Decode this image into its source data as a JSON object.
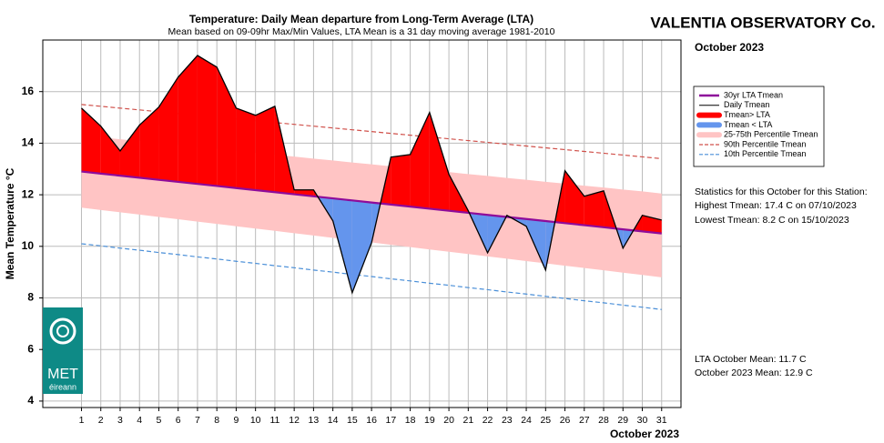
{
  "chart_data": {
    "type": "line",
    "title": "Temperature: Daily Mean departure from Long-Term Average (LTA)",
    "subtitle": "Mean based on 09-09hr Max/Min Values, LTA Mean is a 31 day moving average 1981-2010",
    "station": "VALENTIA OBSERVATORY Co.",
    "period": "October 2023",
    "x_label": "October 2023",
    "y_label": "Mean Temperature °C",
    "x": [
      1,
      2,
      3,
      4,
      5,
      6,
      7,
      8,
      9,
      10,
      11,
      12,
      13,
      14,
      15,
      16,
      17,
      18,
      19,
      20,
      21,
      22,
      23,
      24,
      25,
      26,
      27,
      28,
      29,
      30,
      31
    ],
    "xlim": [
      -1,
      32
    ],
    "xticks": [
      1,
      2,
      3,
      4,
      5,
      6,
      7,
      8,
      9,
      10,
      11,
      12,
      13,
      14,
      15,
      16,
      17,
      18,
      19,
      20,
      21,
      22,
      23,
      24,
      25,
      26,
      27,
      28,
      29,
      30,
      31
    ],
    "ylim": [
      3.75,
      18
    ],
    "yticks": [
      4,
      6,
      8,
      10,
      12,
      14,
      16
    ],
    "grid": true,
    "series": [
      {
        "name": "30yr LTA Tmean",
        "color": "#8e0b9a",
        "values": [
          12.9,
          12.82,
          12.74,
          12.66,
          12.58,
          12.5,
          12.42,
          12.34,
          12.26,
          12.18,
          12.1,
          12.02,
          11.94,
          11.86,
          11.78,
          11.7,
          11.62,
          11.54,
          11.46,
          11.38,
          11.3,
          11.22,
          11.14,
          11.06,
          10.98,
          10.9,
          10.82,
          10.74,
          10.66,
          10.58,
          10.5
        ]
      },
      {
        "name": "Daily Tmean",
        "color": "#000000",
        "values": [
          15.36,
          14.66,
          13.7,
          14.7,
          15.4,
          16.56,
          17.4,
          16.95,
          15.36,
          15.08,
          15.43,
          12.19,
          12.19,
          10.99,
          8.2,
          10.14,
          13.46,
          13.56,
          15.19,
          12.79,
          11.38,
          9.75,
          11.2,
          10.78,
          9.08,
          12.93,
          11.94,
          12.15,
          9.93,
          11.2,
          11.02
        ]
      },
      {
        "name": "90th Percentile Tmean",
        "color": "#d0504a",
        "dashed": true,
        "values": [
          15.5,
          15.43,
          15.36,
          15.29,
          15.22,
          15.15,
          15.08,
          15.01,
          14.94,
          14.87,
          14.8,
          14.73,
          14.66,
          14.59,
          14.52,
          14.45,
          14.38,
          14.31,
          14.24,
          14.17,
          14.1,
          14.03,
          13.96,
          13.89,
          13.82,
          13.75,
          13.68,
          13.61,
          13.54,
          13.47,
          13.4
        ]
      },
      {
        "name": "10th Percentile Tmean",
        "color": "#4a8fd8",
        "dashed": true,
        "values": [
          10.1,
          10.02,
          9.93,
          9.85,
          9.76,
          9.68,
          9.59,
          9.51,
          9.42,
          9.34,
          9.25,
          9.17,
          9.08,
          9.0,
          8.91,
          8.83,
          8.74,
          8.66,
          8.57,
          8.49,
          8.4,
          8.32,
          8.23,
          8.15,
          8.06,
          7.98,
          7.89,
          7.81,
          7.72,
          7.64,
          7.55
        ]
      }
    ],
    "band": {
      "name": "25-75th Percentile Tmean",
      "color": "#ffc4c4",
      "upper": [
        14.3,
        14.23,
        14.15,
        14.08,
        14.0,
        13.93,
        13.85,
        13.78,
        13.7,
        13.63,
        13.55,
        13.48,
        13.4,
        13.33,
        13.25,
        13.18,
        13.1,
        13.03,
        12.95,
        12.88,
        12.8,
        12.73,
        12.65,
        12.58,
        12.5,
        12.43,
        12.35,
        12.28,
        12.2,
        12.13,
        12.05
      ],
      "lower": [
        11.5,
        11.41,
        11.32,
        11.23,
        11.14,
        11.05,
        10.96,
        10.87,
        10.78,
        10.69,
        10.6,
        10.51,
        10.42,
        10.33,
        10.24,
        10.15,
        10.06,
        9.97,
        9.88,
        9.79,
        9.7,
        9.61,
        9.52,
        9.43,
        9.34,
        9.25,
        9.16,
        9.07,
        8.98,
        8.89,
        8.8
      ]
    },
    "fill_above": {
      "name": "Tmean> LTA",
      "color": "#ff0000"
    },
    "fill_below": {
      "name": "Tmean < LTA",
      "color": "#6495ed"
    },
    "stats": [
      "Statistics for this October for this Station:",
      "Highest Tmean: 17.4 C on 07/10/2023",
      "Lowest Tmean: 8.2 C on 15/10/2023"
    ],
    "means": [
      "LTA October Mean: 11.7 C",
      "October 2023 Mean: 12.9 C"
    ],
    "logo": [
      "MET",
      "éireann"
    ]
  }
}
